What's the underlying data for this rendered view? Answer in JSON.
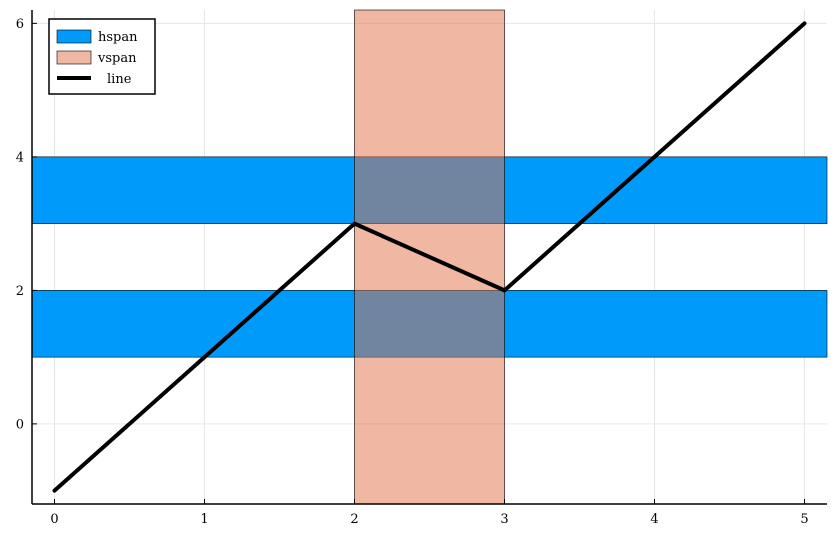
{
  "chart_data": {
    "type": "line",
    "title": "",
    "xlabel": "",
    "ylabel": "",
    "xlim": [
      -0.15,
      5.15
    ],
    "ylim": [
      -1.2,
      6.2
    ],
    "grid": true,
    "legend_position": "top-left",
    "x_ticks": [
      0,
      1,
      2,
      3,
      4,
      5
    ],
    "y_ticks": [
      0,
      2,
      4,
      6
    ],
    "hspans": [
      [
        1,
        2
      ],
      [
        3,
        4
      ]
    ],
    "vspans": [
      [
        2,
        3
      ]
    ],
    "series": [
      {
        "name": "hspan",
        "kind": "hspan",
        "color": "#009AFA"
      },
      {
        "name": "vspan",
        "kind": "vspan",
        "color": "#E26F46",
        "opacity": 0.5
      },
      {
        "name": "line",
        "kind": "line",
        "color": "#000000",
        "x": [
          0,
          1,
          2,
          3,
          4,
          5
        ],
        "y": [
          -1,
          1,
          3,
          2,
          4,
          6
        ]
      }
    ]
  }
}
